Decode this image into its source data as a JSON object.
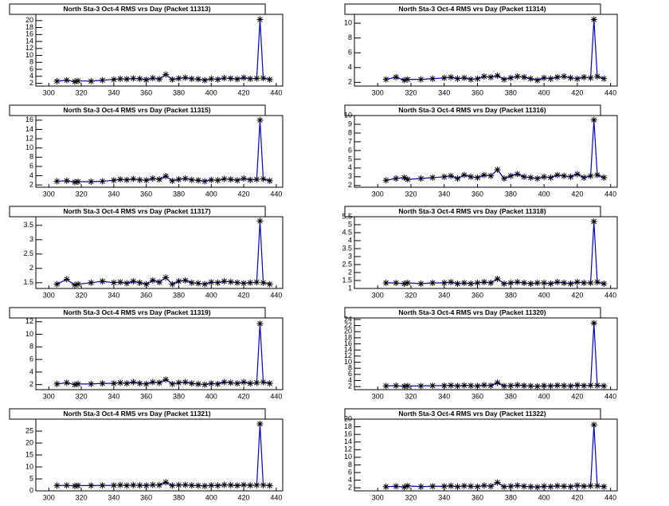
{
  "chart_data": [
    {
      "type": "line",
      "title": "North Sta-3 Oct-4 RMS vrs Day (Packet 11313)",
      "color": "#0000cc",
      "x": [
        305,
        311,
        316,
        318,
        326,
        333,
        340,
        344,
        348,
        352,
        356,
        360,
        364,
        368,
        372,
        376,
        380,
        384,
        388,
        392,
        396,
        400,
        404,
        408,
        412,
        416,
        420,
        424,
        428,
        430,
        432,
        436
      ],
      "values": [
        2.6,
        2.9,
        2.5,
        2.7,
        2.6,
        2.9,
        3.1,
        3.3,
        3.2,
        3.4,
        3.3,
        3.0,
        3.5,
        3.2,
        4.5,
        3.1,
        3.4,
        3.6,
        3.3,
        3.2,
        2.9,
        3.3,
        3.1,
        3.5,
        3.4,
        3.2,
        3.6,
        3.3,
        3.4,
        20.3,
        3.5,
        3.1
      ],
      "xlim": [
        292,
        444
      ],
      "ylim": [
        1.2,
        21.8
      ],
      "xticks": [
        300,
        320,
        340,
        360,
        380,
        400,
        420,
        440
      ],
      "yticks": [
        2,
        4,
        6,
        8,
        10,
        12,
        14,
        16,
        18,
        20
      ]
    },
    {
      "type": "line",
      "title": "North Sta-3 Oct-4 RMS vrs Day (Packet 11314)",
      "color": "#0000cc",
      "x": [
        305,
        311,
        316,
        318,
        326,
        333,
        340,
        344,
        348,
        352,
        356,
        360,
        364,
        368,
        372,
        376,
        380,
        384,
        388,
        392,
        396,
        400,
        404,
        408,
        412,
        416,
        420,
        424,
        428,
        430,
        432,
        436
      ],
      "values": [
        2.4,
        2.7,
        2.3,
        2.4,
        2.4,
        2.5,
        2.6,
        2.7,
        2.5,
        2.6,
        2.4,
        2.5,
        2.8,
        2.7,
        2.9,
        2.4,
        2.6,
        2.8,
        2.7,
        2.5,
        2.3,
        2.6,
        2.5,
        2.7,
        2.8,
        2.6,
        2.5,
        2.7,
        2.6,
        10.5,
        2.8,
        2.5
      ],
      "xlim": [
        286,
        444
      ],
      "ylim": [
        1.5,
        11.2
      ],
      "xticks": [
        300,
        320,
        340,
        360,
        380,
        400,
        420,
        440
      ],
      "yticks": [
        2,
        4,
        6,
        8,
        10
      ]
    },
    {
      "type": "line",
      "title": "North Sta-3 Oct-4 RMS vrs Day (Packet 11315)",
      "color": "#0000cc",
      "x": [
        305,
        311,
        316,
        318,
        326,
        333,
        340,
        344,
        348,
        352,
        356,
        360,
        364,
        368,
        372,
        376,
        380,
        384,
        388,
        392,
        396,
        400,
        404,
        408,
        412,
        416,
        420,
        424,
        428,
        430,
        432,
        436
      ],
      "values": [
        2.8,
        2.9,
        2.6,
        2.7,
        2.7,
        2.8,
        3.0,
        3.2,
        3.1,
        3.3,
        3.1,
        3.0,
        3.4,
        3.2,
        3.9,
        2.9,
        3.2,
        3.4,
        3.1,
        3.0,
        2.8,
        3.1,
        3.0,
        3.3,
        3.2,
        3.0,
        3.4,
        3.1,
        3.2,
        16,
        3.3,
        2.9
      ],
      "xlim": [
        292,
        444
      ],
      "ylim": [
        1.5,
        17
      ],
      "xticks": [
        300,
        320,
        340,
        360,
        380,
        400,
        420,
        440
      ],
      "yticks": [
        2,
        4,
        6,
        8,
        10,
        12,
        14,
        16
      ]
    },
    {
      "type": "line",
      "title": "North Sta-3 Oct-4 RMS vrs Day (Packet 11316)",
      "color": "#0000cc",
      "x": [
        305,
        311,
        316,
        318,
        326,
        333,
        340,
        344,
        348,
        352,
        356,
        360,
        364,
        368,
        372,
        376,
        380,
        384,
        388,
        392,
        396,
        400,
        404,
        408,
        412,
        416,
        420,
        424,
        428,
        430,
        432,
        436
      ],
      "values": [
        2.6,
        2.8,
        2.9,
        2.7,
        2.8,
        2.9,
        3.0,
        3.1,
        2.8,
        3.2,
        3.0,
        2.9,
        3.2,
        3.1,
        3.8,
        2.8,
        3.1,
        3.3,
        3.0,
        2.9,
        2.8,
        3.0,
        2.9,
        3.2,
        3.1,
        3.0,
        3.3,
        2.9,
        3.1,
        9.5,
        3.2,
        2.9
      ],
      "xlim": [
        286,
        444
      ],
      "ylim": [
        1.8,
        10
      ],
      "xticks": [
        300,
        320,
        340,
        360,
        380,
        400,
        420,
        440
      ],
      "yticks": [
        2,
        3,
        4,
        5,
        6,
        7,
        8,
        9,
        10
      ]
    },
    {
      "type": "line",
      "title": "North Sta-3 Oct-4 RMS vrs Day (Packet 11317)",
      "color": "#0000cc",
      "x": [
        305,
        311,
        316,
        318,
        326,
        333,
        340,
        344,
        348,
        352,
        356,
        360,
        364,
        368,
        372,
        376,
        380,
        384,
        388,
        392,
        396,
        400,
        404,
        408,
        412,
        416,
        420,
        424,
        428,
        430,
        432,
        436
      ],
      "values": [
        1.45,
        1.62,
        1.42,
        1.45,
        1.5,
        1.55,
        1.5,
        1.52,
        1.48,
        1.55,
        1.5,
        1.45,
        1.58,
        1.52,
        1.68,
        1.45,
        1.55,
        1.58,
        1.5,
        1.48,
        1.45,
        1.52,
        1.5,
        1.55,
        1.53,
        1.5,
        1.48,
        1.5,
        1.52,
        3.65,
        1.5,
        1.45
      ],
      "xlim": [
        292,
        444
      ],
      "ylim": [
        1.3,
        3.8
      ],
      "xticks": [
        300,
        320,
        340,
        360,
        380,
        400,
        420,
        440
      ],
      "yticks": [
        1.5,
        2,
        2.5,
        3,
        3.5
      ]
    },
    {
      "type": "line",
      "title": "North Sta-3 Oct-4 RMS vrs Day (Packet 11318)",
      "color": "#0000cc",
      "x": [
        305,
        311,
        316,
        318,
        326,
        333,
        340,
        344,
        348,
        352,
        356,
        360,
        364,
        368,
        372,
        376,
        380,
        384,
        388,
        392,
        396,
        400,
        404,
        408,
        412,
        416,
        420,
        424,
        428,
        430,
        432,
        436
      ],
      "values": [
        1.35,
        1.35,
        1.3,
        1.35,
        1.3,
        1.35,
        1.35,
        1.4,
        1.3,
        1.35,
        1.3,
        1.35,
        1.4,
        1.35,
        1.6,
        1.3,
        1.35,
        1.4,
        1.35,
        1.3,
        1.35,
        1.35,
        1.3,
        1.4,
        1.35,
        1.3,
        1.4,
        1.35,
        1.35,
        5.2,
        1.4,
        1.3
      ],
      "xlim": [
        286,
        444
      ],
      "ylim": [
        1,
        5.5
      ],
      "xticks": [
        300,
        320,
        340,
        360,
        380,
        400,
        420,
        440
      ],
      "yticks": [
        1,
        1.5,
        2,
        2.5,
        3,
        3.5,
        4,
        4.5,
        5,
        5.5
      ]
    },
    {
      "type": "line",
      "title": "North Sta-3 Oct-4 RMS vrs Day (Packet 11319)",
      "color": "#0000cc",
      "x": [
        305,
        311,
        316,
        318,
        326,
        333,
        340,
        344,
        348,
        352,
        356,
        360,
        364,
        368,
        372,
        376,
        380,
        384,
        388,
        392,
        396,
        400,
        404,
        408,
        412,
        416,
        420,
        424,
        428,
        430,
        432,
        436
      ],
      "values": [
        2.1,
        2.3,
        2.0,
        2.1,
        2.1,
        2.2,
        2.2,
        2.3,
        2.2,
        2.4,
        2.2,
        2.1,
        2.4,
        2.3,
        2.8,
        2.1,
        2.3,
        2.4,
        2.2,
        2.1,
        2.0,
        2.2,
        2.1,
        2.4,
        2.3,
        2.2,
        2.4,
        2.2,
        2.3,
        11.7,
        2.4,
        2.2
      ],
      "xlim": [
        292,
        444
      ],
      "ylim": [
        1.2,
        12.6
      ],
      "xticks": [
        300,
        320,
        340,
        360,
        380,
        400,
        420,
        440
      ],
      "yticks": [
        2,
        4,
        6,
        8,
        10,
        12
      ]
    },
    {
      "type": "line",
      "title": "North Sta-3 Oct-4 RMS vrs Day (Packet 11320)",
      "color": "#0000cc",
      "x": [
        305,
        311,
        316,
        318,
        326,
        333,
        340,
        344,
        348,
        352,
        356,
        360,
        364,
        368,
        372,
        376,
        380,
        384,
        388,
        392,
        396,
        400,
        404,
        408,
        412,
        416,
        420,
        424,
        428,
        430,
        432,
        436
      ],
      "values": [
        2.2,
        2.3,
        2.1,
        2.2,
        2.2,
        2.3,
        2.3,
        2.4,
        2.2,
        2.4,
        2.3,
        2.2,
        2.5,
        2.3,
        3.3,
        2.2,
        2.3,
        2.5,
        2.3,
        2.2,
        2.1,
        2.3,
        2.2,
        2.4,
        2.3,
        2.2,
        2.5,
        2.3,
        2.4,
        22.8,
        2.4,
        2.2
      ],
      "xlim": [
        286,
        444
      ],
      "ylim": [
        1,
        24.5
      ],
      "xticks": [
        300,
        320,
        340,
        360,
        380,
        400,
        420,
        440
      ],
      "yticks": [
        2,
        4,
        6,
        8,
        10,
        12,
        14,
        16,
        18,
        20,
        22,
        24
      ]
    },
    {
      "type": "line",
      "title": "North Sta-3 Oct-4 RMS vrs Day (Packet 11321)",
      "color": "#0000cc",
      "x": [
        305,
        311,
        316,
        318,
        326,
        333,
        340,
        344,
        348,
        352,
        356,
        360,
        364,
        368,
        372,
        376,
        380,
        384,
        388,
        392,
        396,
        400,
        404,
        408,
        412,
        416,
        420,
        424,
        428,
        430,
        432,
        436
      ],
      "values": [
        2.2,
        2.3,
        2.1,
        2.2,
        2.2,
        2.3,
        2.3,
        2.4,
        2.2,
        2.4,
        2.3,
        2.2,
        2.5,
        2.4,
        3.6,
        2.2,
        2.4,
        2.5,
        2.3,
        2.2,
        2.1,
        2.3,
        2.2,
        2.5,
        2.4,
        2.2,
        2.5,
        2.3,
        2.4,
        28,
        2.4,
        2.2
      ],
      "xlim": [
        292,
        444
      ],
      "ylim": [
        0,
        30
      ],
      "xticks": [
        300,
        320,
        340,
        360,
        380,
        400,
        420,
        440
      ],
      "yticks": [
        0,
        5,
        10,
        15,
        20,
        25
      ]
    },
    {
      "type": "line",
      "title": "North Sta-3 Oct-4 RMS vrs Day (Packet 11322)",
      "color": "#0000cc",
      "x": [
        305,
        311,
        316,
        318,
        326,
        333,
        340,
        344,
        348,
        352,
        356,
        360,
        364,
        368,
        372,
        376,
        380,
        384,
        388,
        392,
        396,
        400,
        404,
        408,
        412,
        416,
        420,
        424,
        428,
        430,
        432,
        436
      ],
      "values": [
        2.3,
        2.4,
        2.2,
        2.5,
        2.3,
        2.4,
        2.4,
        2.5,
        2.3,
        2.5,
        2.4,
        2.3,
        2.6,
        2.4,
        3.4,
        2.3,
        2.4,
        2.6,
        2.4,
        2.3,
        2.2,
        2.4,
        2.3,
        2.5,
        2.4,
        2.3,
        2.6,
        2.4,
        2.5,
        18.5,
        2.5,
        2.3
      ],
      "xlim": [
        286,
        444
      ],
      "ylim": [
        1.2,
        20
      ],
      "xticks": [
        300,
        320,
        340,
        360,
        380,
        400,
        420,
        440
      ],
      "yticks": [
        2,
        4,
        6,
        8,
        10,
        12,
        14,
        16,
        18,
        20
      ]
    }
  ]
}
